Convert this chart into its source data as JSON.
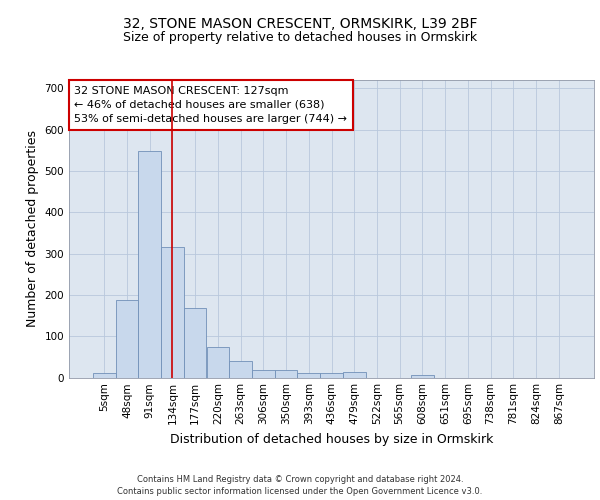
{
  "title1": "32, STONE MASON CRESCENT, ORMSKIRK, L39 2BF",
  "title2": "Size of property relative to detached houses in Ormskirk",
  "xlabel": "Distribution of detached houses by size in Ormskirk",
  "ylabel": "Number of detached properties",
  "categories": [
    "5sqm",
    "48sqm",
    "91sqm",
    "134sqm",
    "177sqm",
    "220sqm",
    "263sqm",
    "306sqm",
    "350sqm",
    "393sqm",
    "436sqm",
    "479sqm",
    "522sqm",
    "565sqm",
    "608sqm",
    "651sqm",
    "695sqm",
    "738sqm",
    "781sqm",
    "824sqm",
    "867sqm"
  ],
  "values": [
    10,
    188,
    548,
    315,
    168,
    75,
    40,
    18,
    18,
    12,
    12,
    14,
    0,
    0,
    6,
    0,
    0,
    0,
    0,
    0,
    0
  ],
  "bar_color": "#c8d8ec",
  "bar_edge_color": "#7090b8",
  "vline_x": 3.0,
  "vline_color": "#cc0000",
  "annotation_text": "32 STONE MASON CRESCENT: 127sqm\n← 46% of detached houses are smaller (638)\n53% of semi-detached houses are larger (744) →",
  "annotation_box_color": "#ffffff",
  "annotation_box_edge": "#cc0000",
  "ylim": [
    0,
    720
  ],
  "yticks": [
    0,
    100,
    200,
    300,
    400,
    500,
    600,
    700
  ],
  "background_color": "#dde6f0",
  "footer": "Contains HM Land Registry data © Crown copyright and database right 2024.\nContains public sector information licensed under the Open Government Licence v3.0.",
  "title_fontsize": 10,
  "subtitle_fontsize": 9,
  "tick_fontsize": 7.5,
  "label_fontsize": 9,
  "annotation_fontsize": 8,
  "footer_fontsize": 6
}
